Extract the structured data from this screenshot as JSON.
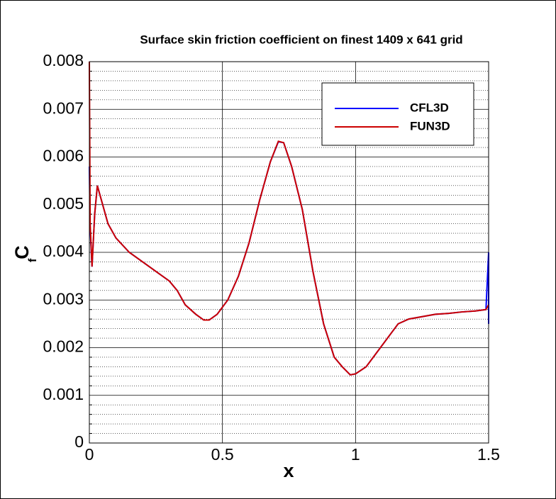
{
  "chart_data": {
    "type": "line",
    "title": "Surface skin friction coefficient on finest 1409 x 641 grid",
    "xlabel": "x",
    "ylabel": "C",
    "ylabel_subscript": "f",
    "xlim": [
      0,
      1.5
    ],
    "xticks": [
      0,
      0.5,
      1,
      1.5
    ],
    "ylim": [
      0,
      0.008
    ],
    "yticks": [
      0,
      0.001,
      0.002,
      0.003,
      0.004,
      0.005,
      0.006,
      0.007,
      0.008
    ],
    "grid": true,
    "minor_grid": true,
    "legend": "top-right",
    "series": [
      {
        "name": "CFL3D",
        "color": "#0000ff",
        "x": [
          0,
          0.003,
          0.01,
          0.02,
          0.03,
          0.05,
          0.07,
          0.1,
          0.15,
          0.2,
          0.25,
          0.3,
          0.33,
          0.36,
          0.4,
          0.43,
          0.45,
          0.48,
          0.52,
          0.56,
          0.6,
          0.64,
          0.68,
          0.71,
          0.73,
          0.76,
          0.8,
          0.84,
          0.88,
          0.92,
          0.95,
          0.98,
          1.0,
          1.04,
          1.08,
          1.12,
          1.16,
          1.2,
          1.25,
          1.3,
          1.35,
          1.4,
          1.45,
          1.49,
          1.5,
          1.5
        ],
        "values": [
          0.0058,
          0.0045,
          0.0037,
          0.0048,
          0.0054,
          0.005,
          0.0046,
          0.0043,
          0.004,
          0.0038,
          0.0036,
          0.0034,
          0.0032,
          0.0029,
          0.0027,
          0.00258,
          0.00258,
          0.0027,
          0.003,
          0.0035,
          0.0042,
          0.0051,
          0.0059,
          0.00632,
          0.0063,
          0.0058,
          0.0049,
          0.0036,
          0.0025,
          0.0018,
          0.0016,
          0.00143,
          0.00145,
          0.0016,
          0.0019,
          0.0022,
          0.0025,
          0.0026,
          0.00265,
          0.0027,
          0.00272,
          0.00275,
          0.00277,
          0.0028,
          0.004,
          0.0025
        ]
      },
      {
        "name": "FUN3D",
        "color": "#cc0000",
        "x": [
          0,
          0.003,
          0.01,
          0.02,
          0.03,
          0.05,
          0.07,
          0.1,
          0.15,
          0.2,
          0.25,
          0.3,
          0.33,
          0.36,
          0.4,
          0.43,
          0.45,
          0.48,
          0.52,
          0.56,
          0.6,
          0.64,
          0.68,
          0.71,
          0.73,
          0.76,
          0.8,
          0.84,
          0.88,
          0.92,
          0.95,
          0.98,
          1.0,
          1.04,
          1.08,
          1.12,
          1.16,
          1.2,
          1.25,
          1.3,
          1.35,
          1.4,
          1.45,
          1.49,
          1.5
        ],
        "values": [
          0.008,
          0.0046,
          0.0037,
          0.0048,
          0.0054,
          0.005,
          0.0046,
          0.0043,
          0.004,
          0.0038,
          0.0036,
          0.0034,
          0.0032,
          0.0029,
          0.0027,
          0.00258,
          0.00258,
          0.0027,
          0.003,
          0.0035,
          0.0042,
          0.0051,
          0.0059,
          0.00633,
          0.0063,
          0.0058,
          0.0049,
          0.0036,
          0.0025,
          0.0018,
          0.0016,
          0.00143,
          0.00145,
          0.0016,
          0.0019,
          0.0022,
          0.0025,
          0.0026,
          0.00265,
          0.0027,
          0.00272,
          0.00275,
          0.00277,
          0.0028,
          0.0029
        ]
      }
    ]
  }
}
